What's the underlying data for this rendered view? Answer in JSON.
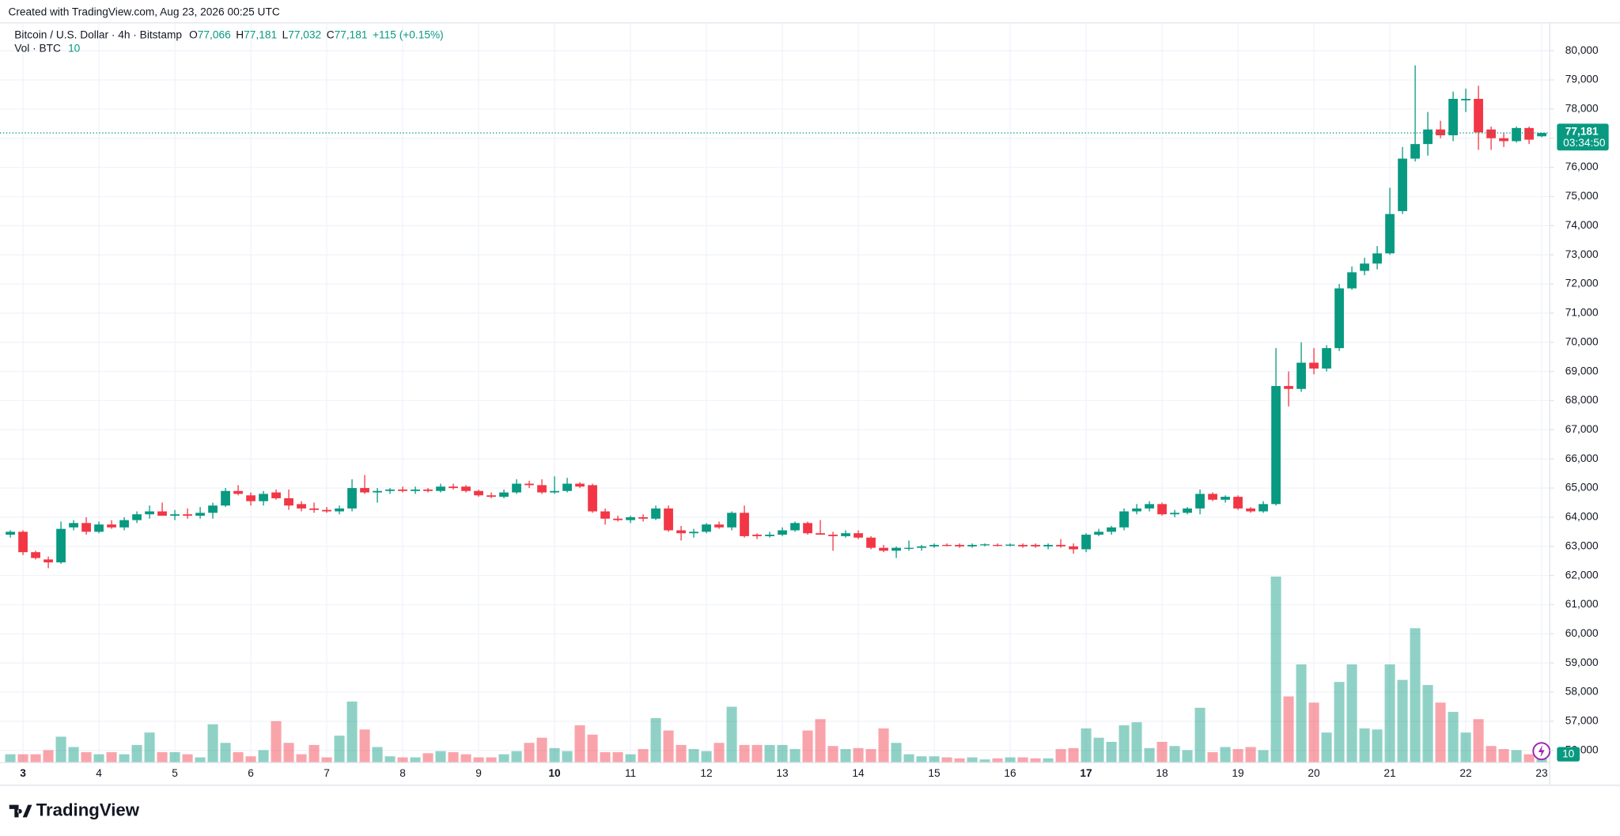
{
  "header": "Created with TradingView.com, Aug 23, 2026 00:25 UTC",
  "logo": "TradingView",
  "legend": {
    "symbol": "Bitcoin / U.S. Dollar · 4h · Bitstamp",
    "ohlc": [
      {
        "key": "O",
        "value": "77,066"
      },
      {
        "key": "H",
        "value": "77,181"
      },
      {
        "key": "L",
        "value": "77,032"
      },
      {
        "key": "C",
        "value": "77,181"
      }
    ],
    "change": "+115 (+0.15%)",
    "volume_title": "Vol · BTC",
    "volume_value": "10"
  },
  "price_tag": {
    "last_price": "77,181",
    "countdown": "03:34:50"
  },
  "chart_data": {
    "type": "candlestick",
    "up_color": "#089981",
    "down_color": "#f23645",
    "categories": [
      null,
      "3",
      null,
      null,
      null,
      null,
      null,
      "4",
      null,
      null,
      null,
      null,
      null,
      "5",
      null,
      null,
      null,
      null,
      null,
      "6",
      null,
      null,
      null,
      null,
      null,
      "7",
      null,
      null,
      null,
      null,
      null,
      "8",
      null,
      null,
      null,
      null,
      null,
      "9",
      null,
      null,
      null,
      null,
      null,
      "10",
      null,
      null,
      null,
      null,
      null,
      "11",
      null,
      null,
      null,
      null,
      null,
      "12",
      null,
      null,
      null,
      null,
      null,
      "13",
      null,
      null,
      null,
      null,
      null,
      "14",
      null,
      null,
      null,
      null,
      null,
      "15",
      null,
      null,
      null,
      null,
      null,
      "16",
      null,
      null,
      null,
      null,
      null,
      "17",
      null,
      null,
      null,
      null,
      null,
      "18",
      null,
      null,
      null,
      null,
      null,
      "19",
      null,
      null,
      null,
      null,
      null,
      "20",
      null,
      null,
      null,
      null,
      null,
      "21",
      null,
      null,
      null,
      null,
      null,
      "22",
      null,
      null,
      null,
      null,
      null,
      "23"
    ],
    "bold_categories": [
      1,
      43,
      85
    ],
    "open": [
      63400,
      63500,
      62800,
      62550,
      62450,
      63650,
      63800,
      63500,
      63750,
      63650,
      63900,
      64100,
      64200,
      64050,
      64100,
      64050,
      64150,
      64400,
      64900,
      64750,
      64550,
      64850,
      64650,
      64450,
      64300,
      64250,
      64200,
      64300,
      65000,
      64850,
      64900,
      64950,
      64900,
      64950,
      64900,
      65050,
      65050,
      64900,
      64750,
      64700,
      64850,
      65150,
      65100,
      64850,
      64900,
      65150,
      65100,
      64200,
      63950,
      63900,
      64000,
      63950,
      64300,
      63550,
      63450,
      63500,
      63750,
      63650,
      64150,
      63400,
      63350,
      63400,
      63550,
      63800,
      63450,
      63400,
      63350,
      63450,
      63300,
      62950,
      62850,
      62950,
      62950,
      63000,
      63050,
      63050,
      63000,
      63050,
      63050,
      63050,
      63050,
      63050,
      63000,
      63050,
      63000,
      62900,
      63400,
      63500,
      63650,
      64200,
      64300,
      64450,
      64100,
      64150,
      64300,
      64800,
      64600,
      64700,
      64300,
      64200,
      64450,
      68500,
      68400,
      69300,
      69100,
      69800,
      71850,
      72450,
      72700,
      73050,
      74500,
      76300,
      76800,
      77300,
      77100,
      78300,
      78350,
      77300,
      77000,
      76900,
      77350,
      77066
    ],
    "high": [
      63550,
      63550,
      62850,
      62650,
      63850,
      63900,
      64000,
      63850,
      63900,
      64000,
      64200,
      64400,
      64500,
      64250,
      64300,
      64350,
      64500,
      65000,
      65100,
      64850,
      64900,
      64950,
      64950,
      64550,
      64500,
      64350,
      64400,
      65300,
      65450,
      65000,
      65000,
      65050,
      65050,
      65000,
      65150,
      65150,
      65100,
      64950,
      64850,
      64950,
      65300,
      65250,
      65300,
      65400,
      65350,
      65200,
      65150,
      64300,
      64050,
      64050,
      64100,
      64400,
      64400,
      63700,
      63600,
      63800,
      63850,
      64200,
      64400,
      63450,
      63500,
      63650,
      63850,
      63850,
      63900,
      63500,
      63550,
      63550,
      63350,
      63050,
      63000,
      63200,
      63050,
      63100,
      63100,
      63100,
      63100,
      63100,
      63100,
      63100,
      63100,
      63100,
      63100,
      63250,
      63100,
      63450,
      63600,
      63700,
      64300,
      64450,
      64550,
      64500,
      64250,
      64350,
      64950,
      64850,
      64750,
      64750,
      64350,
      64550,
      69800,
      69000,
      70000,
      69800,
      69900,
      72000,
      72600,
      72900,
      73300,
      75300,
      76700,
      79500,
      77900,
      77600,
      78600,
      78700,
      78800,
      77400,
      77200,
      77400,
      77400,
      77181
    ],
    "low": [
      63300,
      62700,
      62550,
      62250,
      62400,
      63550,
      63400,
      63450,
      63600,
      63550,
      63800,
      63950,
      64050,
      63900,
      63950,
      63950,
      63950,
      64350,
      64750,
      64400,
      64400,
      64600,
      64250,
      64200,
      64150,
      64150,
      64100,
      64200,
      64800,
      64500,
      64800,
      64850,
      64800,
      64850,
      64850,
      64950,
      64850,
      64700,
      64650,
      64650,
      64800,
      65000,
      64800,
      64800,
      64850,
      65000,
      64150,
      63750,
      63850,
      63800,
      63850,
      63900,
      63500,
      63200,
      63300,
      63450,
      63600,
      63550,
      63300,
      63250,
      63300,
      63350,
      63500,
      63400,
      63400,
      62850,
      63300,
      63250,
      62900,
      62800,
      62600,
      62850,
      62850,
      62950,
      63000,
      62950,
      62950,
      63000,
      63000,
      63000,
      62950,
      62950,
      62900,
      62950,
      62750,
      62800,
      63350,
      63400,
      63550,
      64100,
      64200,
      64050,
      64000,
      64100,
      64100,
      64550,
      64500,
      64250,
      64150,
      64150,
      64400,
      67800,
      68300,
      68900,
      69000,
      69700,
      71800,
      72300,
      72500,
      73000,
      74400,
      76200,
      76400,
      77000,
      76900,
      77900,
      76600,
      76600,
      76700,
      76850,
      76800,
      77032
    ],
    "close": [
      63500,
      62800,
      62600,
      62450,
      63600,
      63800,
      63500,
      63750,
      63650,
      63900,
      64100,
      64200,
      64050,
      64100,
      64050,
      64150,
      64400,
      64900,
      64800,
      64550,
      64800,
      64650,
      64400,
      64300,
      64250,
      64200,
      64300,
      65000,
      64850,
      64900,
      64950,
      64900,
      64950,
      64900,
      65050,
      65000,
      64900,
      64750,
      64700,
      64850,
      65150,
      65100,
      64850,
      64900,
      65150,
      65050,
      64200,
      63950,
      63900,
      64000,
      63950,
      64300,
      63550,
      63450,
      63500,
      63750,
      63650,
      64150,
      63350,
      63350,
      63400,
      63550,
      63800,
      63450,
      63400,
      63350,
      63450,
      63300,
      62950,
      62850,
      62950,
      62950,
      63000,
      63050,
      63030,
      63000,
      63050,
      63070,
      63030,
      63060,
      63000,
      63000,
      63050,
      63000,
      62900,
      63400,
      63500,
      63650,
      64200,
      64300,
      64450,
      64100,
      64150,
      64300,
      64800,
      64600,
      64700,
      64300,
      64200,
      64450,
      68500,
      68400,
      69300,
      69100,
      69800,
      71850,
      72400,
      72700,
      73050,
      74400,
      76300,
      76800,
      77300,
      77100,
      78350,
      78350,
      77200,
      77000,
      76900,
      77350,
      76950,
      77181
    ],
    "volume": [
      8,
      8,
      8,
      12,
      25,
      15,
      10,
      8,
      10,
      8,
      17,
      29,
      10,
      10,
      8,
      5,
      37,
      19,
      10,
      6,
      12,
      40,
      19,
      8,
      17,
      5,
      26,
      59,
      32,
      15,
      6,
      5,
      5,
      9,
      11,
      10,
      8,
      5,
      5,
      8,
      11,
      19,
      24,
      14,
      11,
      36,
      27,
      10,
      10,
      8,
      13,
      43,
      31,
      17,
      13,
      11,
      19,
      54,
      17,
      17,
      17,
      17,
      13,
      31,
      42,
      16,
      13,
      14,
      13,
      33,
      19,
      8,
      6,
      6,
      5,
      4,
      5,
      3,
      4,
      5,
      5,
      4,
      4,
      13,
      14,
      33,
      24,
      20,
      36,
      39,
      14,
      20,
      16,
      12,
      53,
      10,
      15,
      13,
      15,
      12,
      180,
      64,
      95,
      58,
      29,
      78,
      95,
      33,
      32,
      95,
      80,
      130,
      75,
      58,
      49,
      29,
      42,
      16,
      13,
      12,
      8,
      10
    ],
    "ylim": [
      55585,
      80957
    ],
    "yticks": [
      {
        "value": 56000,
        "label": "56,000"
      },
      {
        "value": 57000,
        "label": "57,000"
      },
      {
        "value": 58000,
        "label": "58,000"
      },
      {
        "value": 59000,
        "label": "59,000"
      },
      {
        "value": 60000,
        "label": "60,000"
      },
      {
        "value": 61000,
        "label": "61,000"
      },
      {
        "value": 62000,
        "label": "62,000"
      },
      {
        "value": 63000,
        "label": "63,000"
      },
      {
        "value": 64000,
        "label": "64,000"
      },
      {
        "value": 65000,
        "label": "65,000"
      },
      {
        "value": 66000,
        "label": "66,000"
      },
      {
        "value": 67000,
        "label": "67,000"
      },
      {
        "value": 68000,
        "label": "68,000"
      },
      {
        "value": 69000,
        "label": "69,000"
      },
      {
        "value": 70000,
        "label": "70,000"
      },
      {
        "value": 71000,
        "label": "71,000"
      },
      {
        "value": 72000,
        "label": "72,000"
      },
      {
        "value": 73000,
        "label": "73,000"
      },
      {
        "value": 74000,
        "label": "74,000"
      },
      {
        "value": 75000,
        "label": "75,000"
      },
      {
        "value": 76000,
        "label": "76,000"
      },
      {
        "value": 77000,
        "label": "77,000"
      },
      {
        "value": 78000,
        "label": "78,000"
      },
      {
        "value": 79000,
        "label": "79,000"
      },
      {
        "value": 80000,
        "label": "80,000"
      }
    ],
    "grid": true
  }
}
